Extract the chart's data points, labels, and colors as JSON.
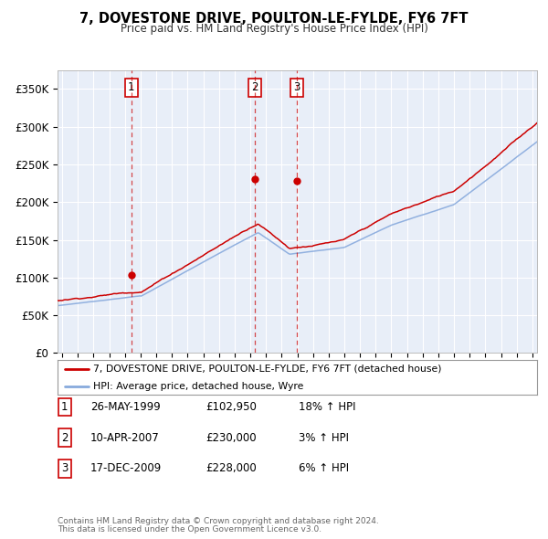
{
  "title": "7, DOVESTONE DRIVE, POULTON-LE-FYLDE, FY6 7FT",
  "subtitle": "Price paid vs. HM Land Registry's House Price Index (HPI)",
  "ylabel_ticks": [
    "£0",
    "£50K",
    "£100K",
    "£150K",
    "£200K",
    "£250K",
    "£300K",
    "£350K"
  ],
  "ytick_values": [
    0,
    50000,
    100000,
    150000,
    200000,
    250000,
    300000,
    350000
  ],
  "ylim": [
    0,
    370000
  ],
  "xlim_start": 1994.7,
  "xlim_end": 2025.3,
  "sales": [
    {
      "num": 1,
      "date": "26-MAY-1999",
      "year": 1999.4,
      "price": 102950,
      "pct": "18%",
      "dir": "↑"
    },
    {
      "num": 2,
      "date": "10-APR-2007",
      "year": 2007.27,
      "price": 230000,
      "pct": "3%",
      "dir": "↑"
    },
    {
      "num": 3,
      "date": "17-DEC-2009",
      "year": 2009.96,
      "price": 228000,
      "pct": "6%",
      "dir": "↑"
    }
  ],
  "legend_line1": "7, DOVESTONE DRIVE, POULTON-LE-FYLDE, FY6 7FT (detached house)",
  "legend_line2": "HPI: Average price, detached house, Wyre",
  "footer1": "Contains HM Land Registry data © Crown copyright and database right 2024.",
  "footer2": "This data is licensed under the Open Government Licence v3.0.",
  "red_color": "#cc0000",
  "blue_color": "#88aadd",
  "bg_color": "#e8eef8",
  "grid_color": "#ffffff",
  "table_rows": [
    {
      "num": "1",
      "date": "26-MAY-1999",
      "price": "£102,950",
      "pct": "18% ↑ HPI"
    },
    {
      "num": "2",
      "date": "10-APR-2007",
      "price": "£230,000",
      "pct": "3% ↑ HPI"
    },
    {
      "num": "3",
      "date": "17-DEC-2009",
      "price": "£228,000",
      "pct": "6% ↑ HPI"
    }
  ]
}
